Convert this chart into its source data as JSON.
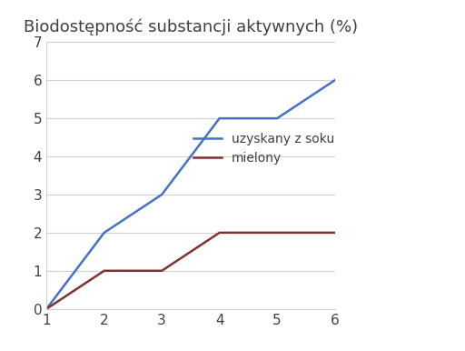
{
  "title": "Biodostępność substancji aktywnych (%)",
  "x_blue": [
    1,
    2,
    3,
    4,
    5,
    6
  ],
  "y_blue": [
    0,
    2,
    3,
    5,
    5,
    6
  ],
  "x_red": [
    1,
    2,
    3,
    4,
    5,
    6
  ],
  "y_red": [
    0,
    1,
    1,
    2,
    2,
    2
  ],
  "blue_color": "#4472c4",
  "red_color": "#833232",
  "legend_blue": "uzyskany z soku",
  "legend_red": "mielony",
  "xlim": [
    1,
    6
  ],
  "ylim": [
    0,
    7
  ],
  "xticks": [
    1,
    2,
    3,
    4,
    5,
    6
  ],
  "yticks": [
    0,
    1,
    2,
    3,
    4,
    5,
    6,
    7
  ],
  "title_fontsize": 13,
  "legend_fontsize": 10,
  "tick_fontsize": 11,
  "line_width": 1.8,
  "plot_bg": "#ffffff",
  "figure_bg": "#ffffff",
  "grid_color": "#d0d0d0",
  "text_color": "#404040"
}
